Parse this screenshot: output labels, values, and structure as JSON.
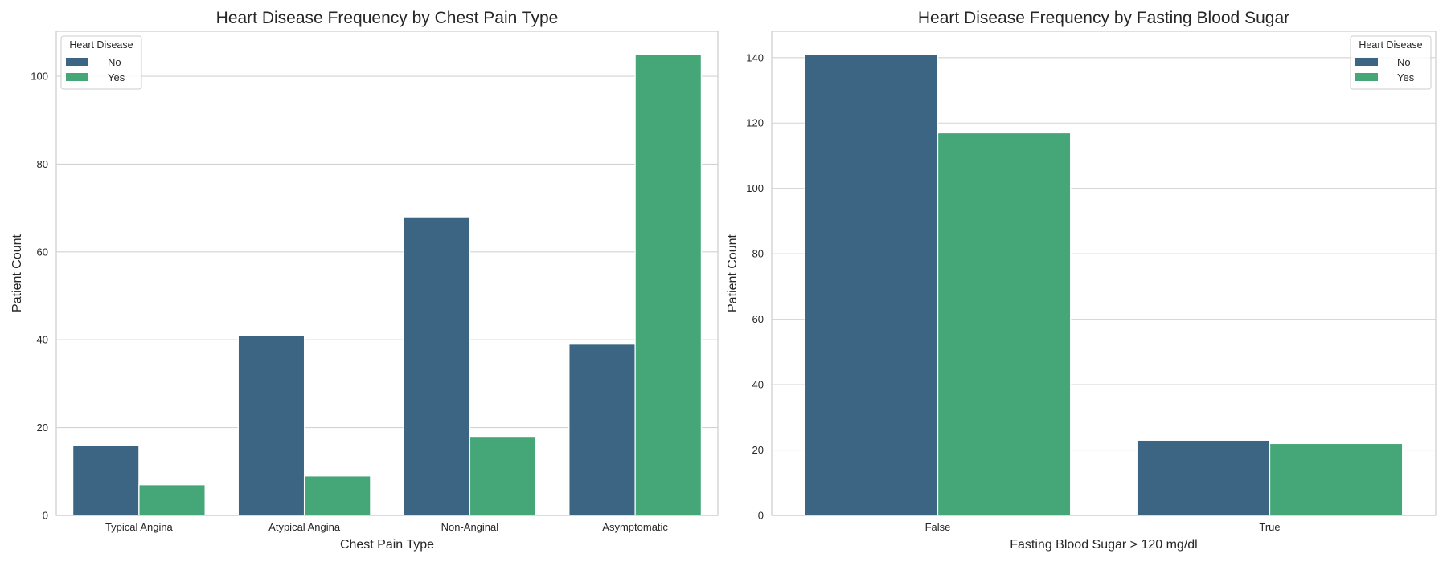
{
  "colors": {
    "no": "#3b6582",
    "yes": "#45a777"
  },
  "chart_data": [
    {
      "type": "bar",
      "title": "Heart Disease Frequency by Chest Pain Type",
      "xlabel": "Chest Pain Type",
      "ylabel": "Patient Count",
      "categories": [
        "Typical Angina",
        "Atypical Angina",
        "Non-Anginal",
        "Asymptomatic"
      ],
      "series": [
        {
          "name": "No",
          "values": [
            16,
            41,
            68,
            39
          ]
        },
        {
          "name": "Yes",
          "values": [
            7,
            9,
            18,
            105
          ]
        }
      ],
      "ylim": [
        0,
        110.25
      ],
      "yticks": [
        0,
        20,
        40,
        60,
        80,
        100
      ],
      "grid": "horizontal",
      "legend": {
        "title": "Heart Disease",
        "placement": "top-left"
      }
    },
    {
      "type": "bar",
      "title": "Heart Disease Frequency by Fasting Blood Sugar",
      "xlabel": "Fasting Blood Sugar > 120 mg/dl",
      "ylabel": "Patient Count",
      "categories": [
        "False",
        "True"
      ],
      "series": [
        {
          "name": "No",
          "values": [
            141,
            23
          ]
        },
        {
          "name": "Yes",
          "values": [
            117,
            22
          ]
        }
      ],
      "ylim": [
        0,
        148.05
      ],
      "yticks": [
        0,
        20,
        40,
        60,
        80,
        100,
        120,
        140
      ],
      "grid": "horizontal",
      "legend": {
        "title": "Heart Disease",
        "placement": "top-right"
      }
    }
  ]
}
